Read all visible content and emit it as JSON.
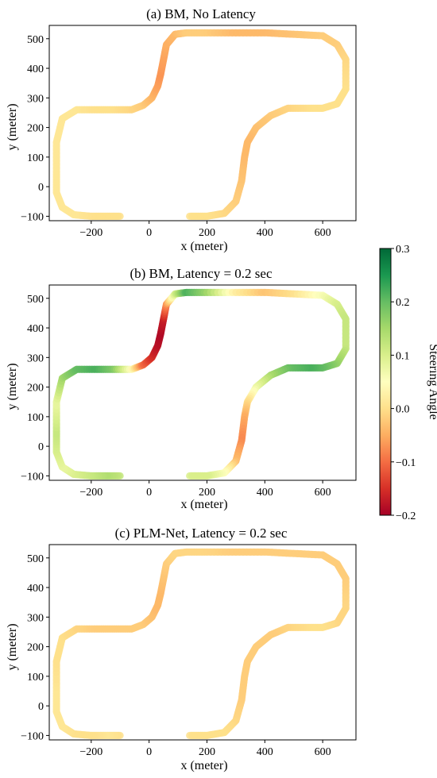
{
  "figure": {
    "colorbar": {
      "label": "Steering Angle",
      "ticks": [
        "0.3",
        "0.2",
        "0.1",
        "0.0",
        "−0.1",
        "−0.2"
      ],
      "range": [
        -0.2,
        0.3
      ],
      "colors": [
        "#a50026",
        "#d73027",
        "#f46d43",
        "#fdae61",
        "#fee08b",
        "#ffffbf",
        "#d9ef8b",
        "#a6d96a",
        "#66bd63",
        "#1a9850",
        "#006837"
      ]
    }
  },
  "chart_data": [
    {
      "type": "scatter",
      "title": "(a)  BM, No Latency",
      "xlabel": "x (meter)",
      "ylabel": "y (meter)",
      "xticks": [
        "−200",
        "0",
        "200",
        "400",
        "600"
      ],
      "yticks": [
        "−100",
        "0",
        "100",
        "200",
        "300",
        "400",
        "500"
      ],
      "xlim": [
        -345,
        715
      ],
      "ylim": [
        -115,
        545
      ],
      "series": [
        {
          "x": [
            -100,
            -150,
            -200,
            -260,
            -300,
            -320,
            -320,
            -320,
            -300,
            -250,
            -180,
            -120,
            -60,
            -20,
            10,
            30,
            40,
            50,
            60,
            90,
            130,
            200,
            300,
            400,
            500,
            600,
            650,
            680,
            680,
            650,
            600,
            550,
            480,
            420,
            370,
            340,
            330,
            320,
            300,
            260,
            200,
            140
          ],
          "y": [
            -100,
            -100,
            -100,
            -95,
            -70,
            -20,
            50,
            150,
            230,
            260,
            260,
            260,
            260,
            275,
            300,
            340,
            380,
            430,
            480,
            515,
            520,
            520,
            520,
            520,
            515,
            510,
            480,
            430,
            330,
            280,
            265,
            265,
            265,
            240,
            200,
            150,
            100,
            20,
            -50,
            -90,
            -100,
            -100
          ],
          "steer": [
            0.0,
            0.0,
            0.0,
            0.01,
            0.01,
            0.01,
            0.01,
            0.01,
            0.01,
            0.01,
            0.0,
            0.0,
            -0.01,
            -0.02,
            -0.04,
            -0.06,
            -0.07,
            -0.06,
            -0.05,
            -0.04,
            -0.02,
            -0.02,
            -0.04,
            -0.04,
            -0.03,
            -0.02,
            -0.02,
            -0.01,
            0.0,
            0.0,
            0.0,
            0.0,
            -0.01,
            -0.02,
            -0.03,
            -0.04,
            -0.04,
            -0.03,
            -0.02,
            -0.01,
            0.0,
            0.0
          ]
        }
      ]
    },
    {
      "type": "scatter",
      "title": "(b)  BM, Latency = 0.2 sec",
      "xlabel": "x (meter)",
      "ylabel": "y (meter)",
      "xticks": [
        "−200",
        "0",
        "200",
        "400",
        "600"
      ],
      "yticks": [
        "−100",
        "0",
        "100",
        "200",
        "300",
        "400",
        "500"
      ],
      "xlim": [
        -345,
        715
      ],
      "ylim": [
        -115,
        545
      ],
      "series": [
        {
          "x": [
            -100,
            -150,
            -200,
            -260,
            -300,
            -320,
            -320,
            -320,
            -300,
            -250,
            -180,
            -120,
            -60,
            -20,
            10,
            30,
            40,
            50,
            60,
            90,
            130,
            200,
            300,
            400,
            500,
            600,
            650,
            680,
            680,
            650,
            600,
            550,
            480,
            420,
            370,
            340,
            330,
            320,
            300,
            260,
            200,
            140
          ],
          "y": [
            -100,
            -100,
            -100,
            -95,
            -70,
            -20,
            50,
            150,
            230,
            260,
            260,
            260,
            260,
            275,
            300,
            340,
            380,
            430,
            480,
            515,
            520,
            520,
            520,
            520,
            515,
            510,
            480,
            430,
            330,
            280,
            265,
            265,
            265,
            240,
            200,
            150,
            100,
            20,
            -50,
            -90,
            -100,
            -100
          ],
          "steer": [
            0.12,
            0.14,
            0.12,
            0.1,
            0.08,
            0.1,
            0.12,
            0.08,
            0.15,
            0.2,
            0.22,
            0.18,
            0.05,
            -0.1,
            -0.15,
            -0.18,
            -0.19,
            -0.17,
            -0.08,
            0.1,
            0.22,
            0.16,
            0.02,
            -0.03,
            0.0,
            0.06,
            0.1,
            0.12,
            0.12,
            0.16,
            0.2,
            0.22,
            0.2,
            0.15,
            0.08,
            0.0,
            -0.05,
            -0.08,
            -0.04,
            0.05,
            0.1,
            0.1
          ]
        }
      ]
    },
    {
      "type": "scatter",
      "title": "(c)  PLM-Net, Latency = 0.2 sec",
      "xlabel": "x (meter)",
      "ylabel": "y (meter)",
      "xticks": [
        "−200",
        "0",
        "200",
        "400",
        "600"
      ],
      "yticks": [
        "−100",
        "0",
        "100",
        "200",
        "300",
        "400",
        "500"
      ],
      "xlim": [
        -345,
        715
      ],
      "ylim": [
        -115,
        545
      ],
      "series": [
        {
          "x": [
            -100,
            -150,
            -200,
            -260,
            -300,
            -320,
            -320,
            -320,
            -300,
            -250,
            -180,
            -120,
            -60,
            -20,
            10,
            30,
            40,
            50,
            60,
            90,
            130,
            200,
            300,
            400,
            500,
            600,
            650,
            680,
            680,
            650,
            600,
            550,
            480,
            420,
            370,
            340,
            330,
            320,
            300,
            260,
            200,
            140
          ],
          "y": [
            -100,
            -100,
            -100,
            -95,
            -70,
            -20,
            50,
            150,
            230,
            260,
            260,
            260,
            260,
            275,
            300,
            340,
            380,
            430,
            480,
            515,
            520,
            520,
            520,
            520,
            515,
            510,
            480,
            430,
            330,
            280,
            265,
            265,
            265,
            240,
            200,
            150,
            100,
            20,
            -50,
            -90,
            -100,
            -100
          ],
          "steer": [
            0.0,
            0.01,
            0.0,
            0.0,
            0.01,
            0.01,
            0.01,
            0.0,
            0.0,
            -0.01,
            -0.02,
            -0.02,
            -0.02,
            -0.02,
            -0.03,
            -0.04,
            -0.04,
            -0.03,
            -0.02,
            -0.01,
            -0.01,
            -0.01,
            -0.02,
            -0.02,
            -0.02,
            -0.02,
            -0.02,
            -0.02,
            -0.01,
            -0.01,
            0.0,
            0.0,
            -0.01,
            -0.02,
            -0.02,
            -0.02,
            -0.02,
            -0.02,
            -0.01,
            0.0,
            0.0,
            0.0
          ]
        }
      ]
    }
  ]
}
